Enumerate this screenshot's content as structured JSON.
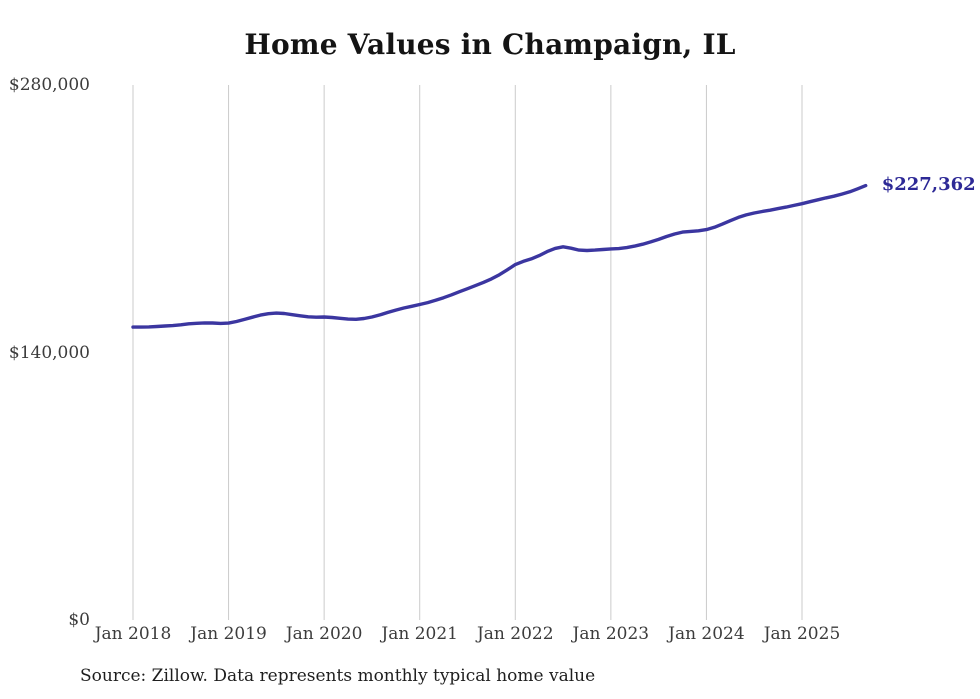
{
  "title": "Home Values in Champaign, IL",
  "end_label": "$227,362",
  "source": "Source: Zillow. Data represents monthly typical home value",
  "colors": {
    "line": "#3b36a0",
    "end_label": "#2d2996",
    "grid": "#cbcbcb",
    "axis_text": "#3c3c3c",
    "title_text": "#141414",
    "source_text": "#1e1e1e",
    "background": "#ffffff"
  },
  "chart_data": {
    "type": "line",
    "title": "Home Values in Champaign, IL",
    "xlabel": "",
    "ylabel": "",
    "x_start": "2018-01",
    "x_end": "2025-09",
    "x_tick_labels": [
      "Jan 2018",
      "Jan 2019",
      "Jan 2020",
      "Jan 2021",
      "Jan 2022",
      "Jan 2023",
      "Jan 2024",
      "Jan 2025"
    ],
    "y_ticks": [
      0,
      140000,
      280000
    ],
    "y_tick_labels": [
      "$0",
      "$140,000",
      "$280,000"
    ],
    "ylim": [
      0,
      280000
    ],
    "grid": "vertical-only",
    "legend": "none",
    "last_point_label": "$227,362",
    "last_point_value": 227362,
    "series": [
      {
        "name": "Monthly typical home value",
        "values": [
          153300,
          153300,
          153400,
          153600,
          153850,
          154100,
          154500,
          155000,
          155300,
          155500,
          155450,
          155250,
          155400,
          156200,
          157300,
          158500,
          159600,
          160300,
          160600,
          160400,
          159800,
          159200,
          158700,
          158450,
          158600,
          158300,
          157900,
          157500,
          157400,
          157800,
          158600,
          159700,
          161000,
          162200,
          163300,
          164200,
          165100,
          166100,
          167300,
          168700,
          170200,
          171800,
          173400,
          175000,
          176700,
          178500,
          180700,
          183300,
          186000,
          187700,
          189000,
          190700,
          192800,
          194500,
          195300,
          194600,
          193600,
          193400,
          193600,
          193900,
          194200,
          194400,
          194900,
          195700,
          196700,
          197900,
          199200,
          200700,
          202000,
          203000,
          203400,
          203700,
          204300,
          205500,
          207200,
          209000,
          210700,
          212000,
          213000,
          213800,
          214500,
          215300,
          216100,
          217000,
          217900,
          218900,
          219900,
          220900,
          221800,
          222900,
          224100,
          225700,
          227362
        ]
      }
    ]
  }
}
